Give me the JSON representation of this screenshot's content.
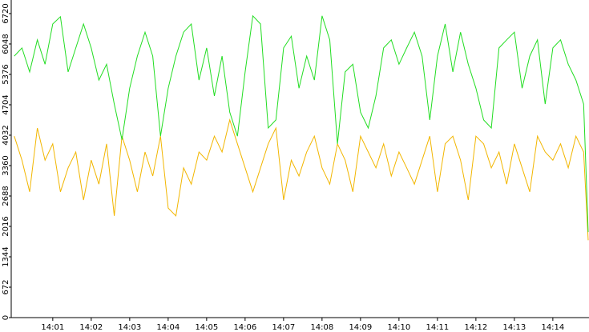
{
  "chart_data": {
    "type": "line",
    "x": [
      0,
      0.2,
      0.4,
      0.6,
      0.8,
      1,
      1.2,
      1.4,
      1.6,
      1.8,
      2,
      2.2,
      2.4,
      2.6,
      2.8,
      3,
      3.2,
      3.4,
      3.6,
      3.8,
      4,
      4.2,
      4.4,
      4.6,
      4.8,
      5,
      5.2,
      5.4,
      5.6,
      5.8,
      6,
      6.2,
      6.4,
      6.6,
      6.8,
      7,
      7.2,
      7.4,
      7.6,
      7.8,
      8,
      8.2,
      8.4,
      8.6,
      8.8,
      9,
      9.2,
      9.4,
      9.6,
      9.8,
      10,
      10.2,
      10.4,
      10.6,
      10.8,
      11,
      11.2,
      11.4,
      11.6,
      11.8,
      12,
      12.2,
      12.4,
      12.6,
      12.8,
      13,
      13.2,
      13.4,
      13.6,
      13.8,
      14,
      14.2,
      14.4,
      14.6,
      14.8,
      14.92
    ],
    "series": [
      {
        "color": "#22dd22",
        "values": [
          5780,
          5960,
          5430,
          6140,
          5600,
          6490,
          6650,
          5430,
          5960,
          6490,
          5960,
          5250,
          5600,
          4720,
          3930,
          5070,
          5780,
          6310,
          5780,
          4010,
          5070,
          5780,
          6310,
          6490,
          5250,
          5960,
          4900,
          5780,
          4540,
          4010,
          5430,
          6670,
          6490,
          4190,
          4370,
          5960,
          6220,
          5070,
          5780,
          5250,
          6670,
          6140,
          3840,
          5430,
          5600,
          4540,
          4190,
          4900,
          5960,
          6140,
          5600,
          5960,
          6310,
          5780,
          4370,
          5780,
          6490,
          5430,
          6310,
          5600,
          5070,
          4370,
          4190,
          5960,
          6140,
          6310,
          5070,
          5780,
          6140,
          4720,
          5960,
          6140,
          5600,
          5250,
          4720,
          1890
        ]
      },
      {
        "color": "#f2b600",
        "values": [
          4010,
          3480,
          2780,
          4190,
          3480,
          3840,
          2780,
          3310,
          3660,
          2600,
          3480,
          2950,
          3840,
          2250,
          4010,
          3480,
          2780,
          3660,
          3130,
          4010,
          2420,
          2250,
          3310,
          2950,
          3660,
          3480,
          4010,
          3660,
          4370,
          3840,
          3310,
          2780,
          3310,
          3840,
          4190,
          2600,
          3480,
          3130,
          3660,
          4010,
          3310,
          2950,
          3840,
          3480,
          2780,
          4010,
          3660,
          3310,
          3840,
          3130,
          3660,
          3310,
          2950,
          3480,
          4010,
          2780,
          3840,
          4010,
          3480,
          2600,
          4010,
          3840,
          3310,
          3660,
          2950,
          3840,
          3310,
          2780,
          4010,
          3660,
          3480,
          3840,
          3310,
          4010,
          3660,
          1710
        ]
      }
    ],
    "xlim": [
      -0.08,
      14.94
    ],
    "xticks": [
      {
        "value": 1,
        "label": "14:01"
      },
      {
        "value": 2,
        "label": "14:02"
      },
      {
        "value": 3,
        "label": "14:03"
      },
      {
        "value": 4,
        "label": "14:04"
      },
      {
        "value": 5,
        "label": "14:05"
      },
      {
        "value": 6,
        "label": "14:06"
      },
      {
        "value": 7,
        "label": "14:07"
      },
      {
        "value": 8,
        "label": "14:08"
      },
      {
        "value": 9,
        "label": "14:09"
      },
      {
        "value": 10,
        "label": "14:10"
      },
      {
        "value": 11,
        "label": "14:11"
      },
      {
        "value": 12,
        "label": "14:12"
      },
      {
        "value": 13,
        "label": "14:13"
      },
      {
        "value": 14,
        "label": "14:14"
      }
    ],
    "ylim": [
      0,
      7020
    ],
    "yticks": [
      0,
      672,
      1344,
      2016,
      2688,
      3360,
      4032,
      4704,
      5376,
      6048,
      6720
    ]
  }
}
